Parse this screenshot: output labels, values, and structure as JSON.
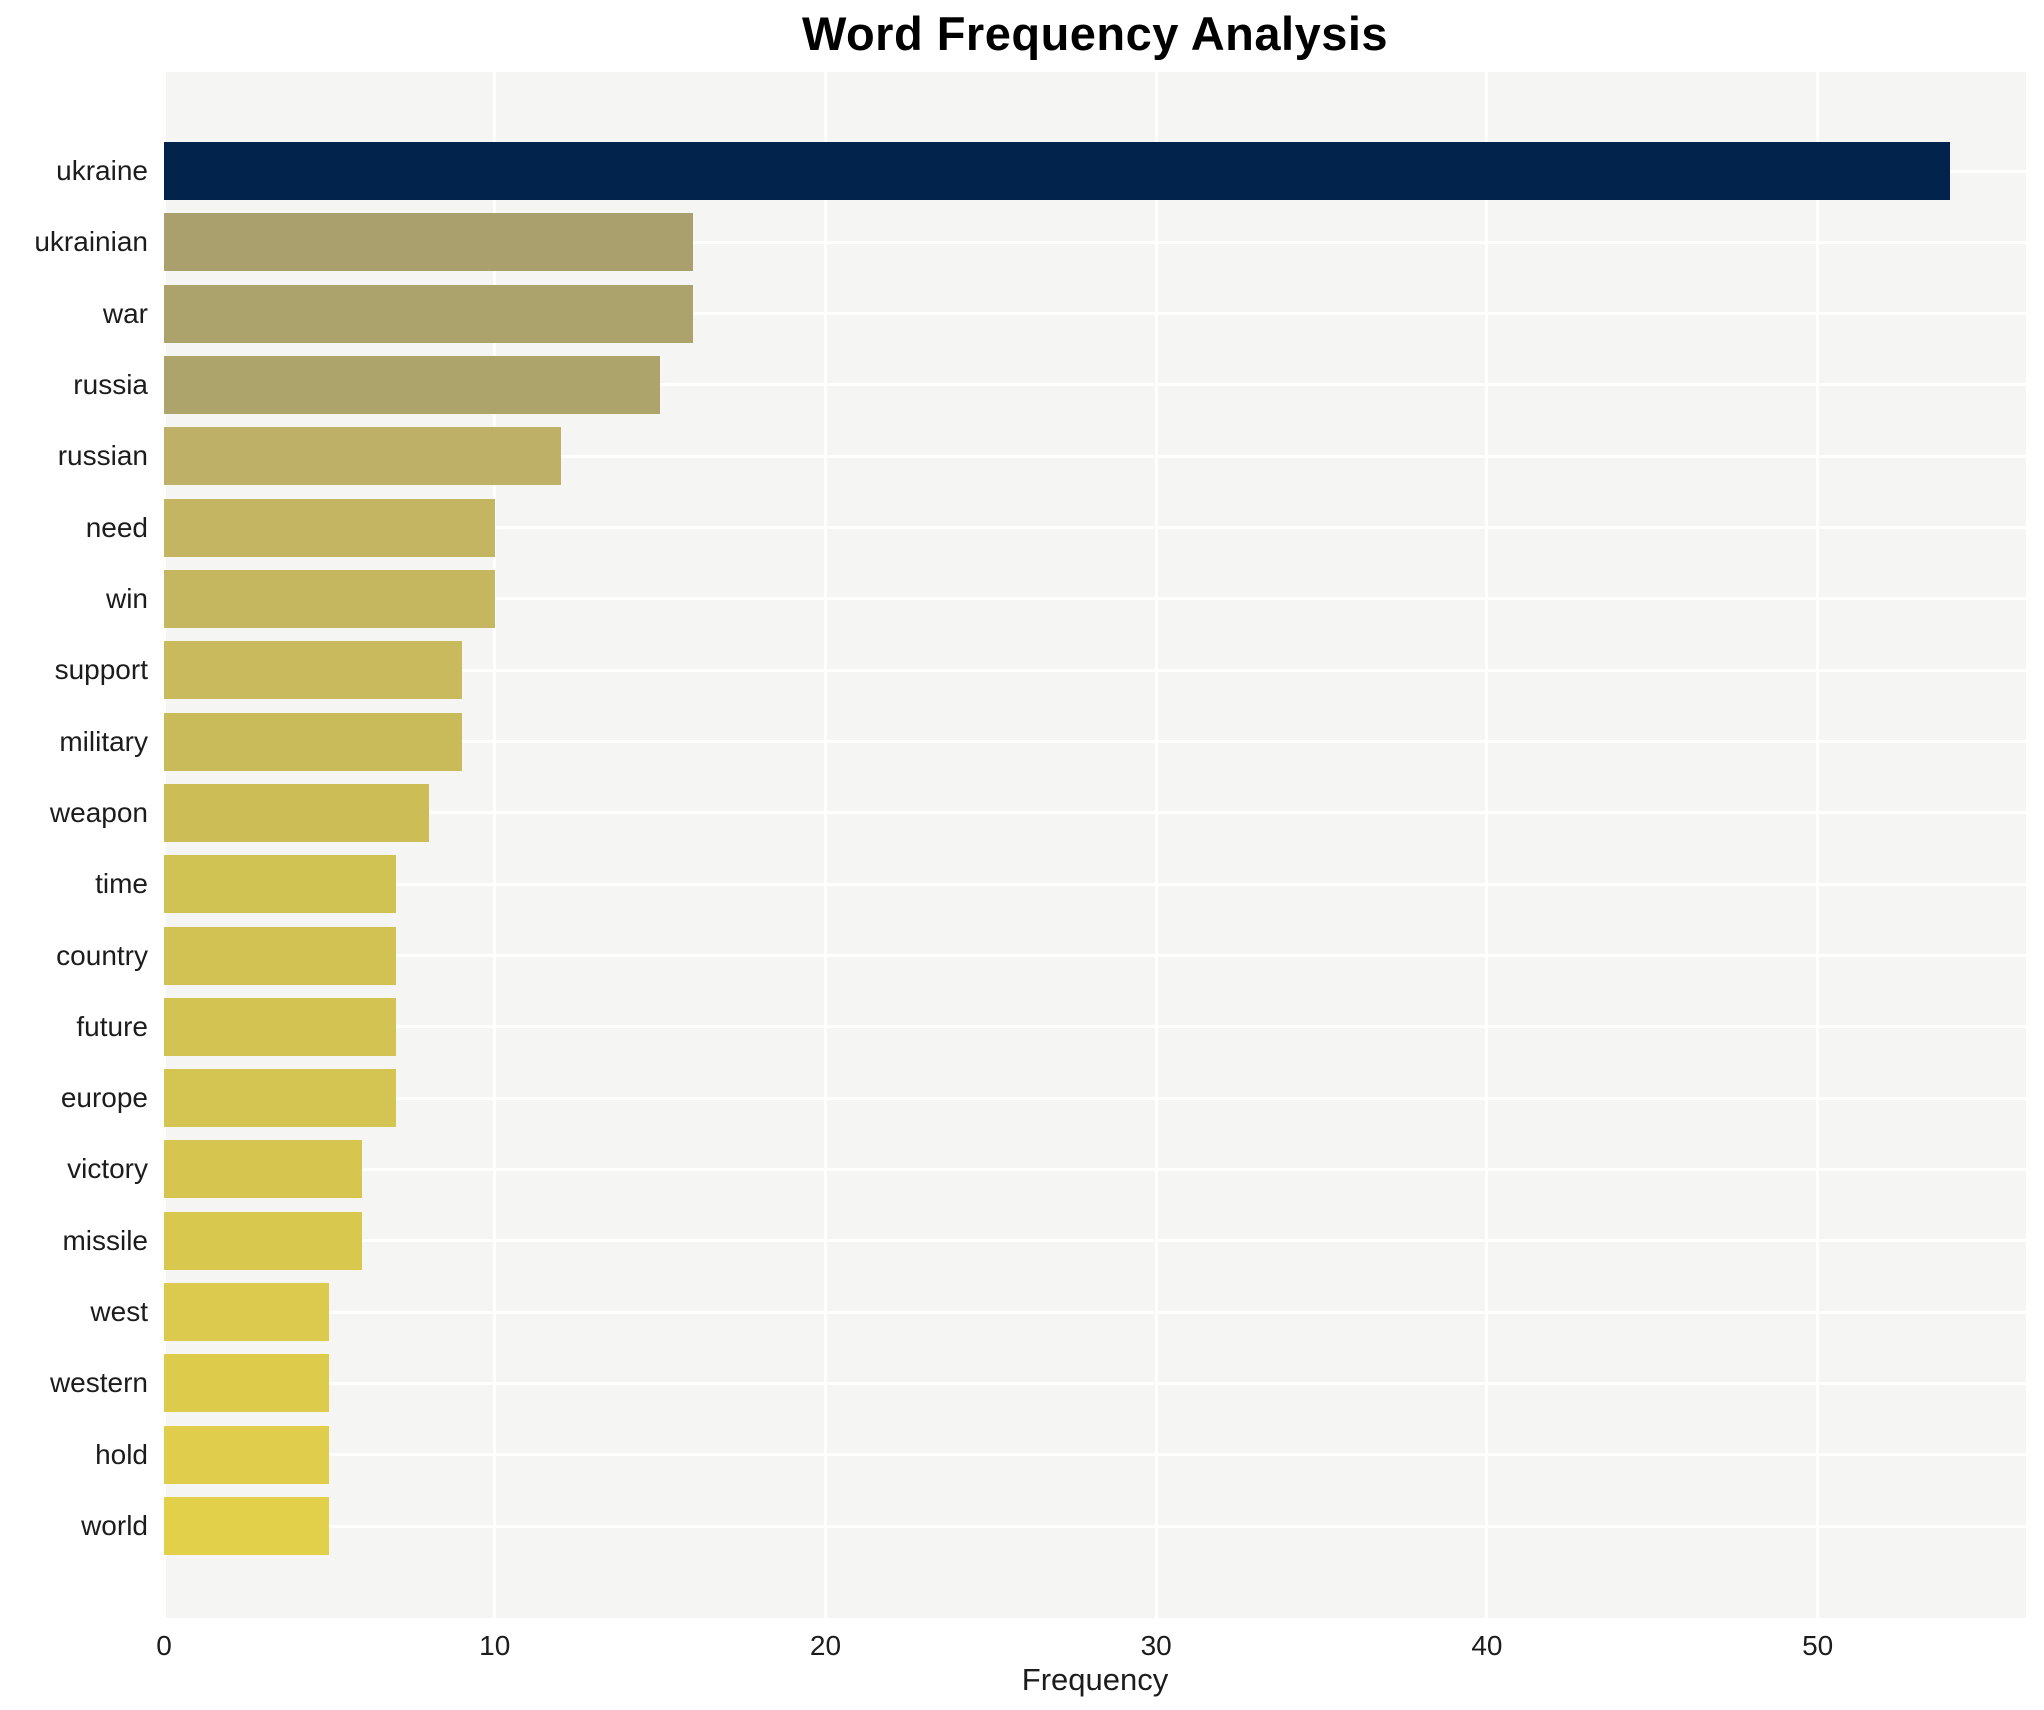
{
  "chart_data": {
    "type": "bar",
    "orientation": "horizontal",
    "title": "Word Frequency Analysis",
    "xlabel": "Frequency",
    "ylabel": "",
    "xlim": [
      0,
      56.3
    ],
    "xticks": [
      0,
      10,
      20,
      30,
      40,
      50
    ],
    "grid": "white gridlines on light panel, vertical at ticks and horizontal at category centers",
    "legend": "none",
    "categories": [
      "ukraine",
      "ukrainian",
      "war",
      "russia",
      "russian",
      "need",
      "win",
      "support",
      "military",
      "weapon",
      "time",
      "country",
      "future",
      "europe",
      "victory",
      "missile",
      "west",
      "western",
      "hold",
      "world"
    ],
    "values": [
      54,
      16,
      16,
      15,
      12,
      10,
      10,
      9,
      9,
      8,
      7,
      7,
      7,
      7,
      6,
      6,
      5,
      5,
      5,
      5
    ],
    "bar_colors": [
      "#02234c",
      "#a9a06e",
      "#aba26c",
      "#ada46b",
      "#beb066",
      "#c3b562",
      "#c5b75f",
      "#c8ba5d",
      "#cabb5a",
      "#cdbd57",
      "#d1c254",
      "#d2c253",
      "#d3c352",
      "#d4c451",
      "#d6c650",
      "#d8c84e",
      "#dbca4d",
      "#ddcc4c",
      "#dfcd4b",
      "#e2cf4a"
    ]
  },
  "colors": {
    "figure_background": "#ffffff",
    "panel_background": "#f5f5f3",
    "gridline": "#ffffff",
    "title_text": "#000000",
    "axis_text": "#1c1c1c"
  }
}
